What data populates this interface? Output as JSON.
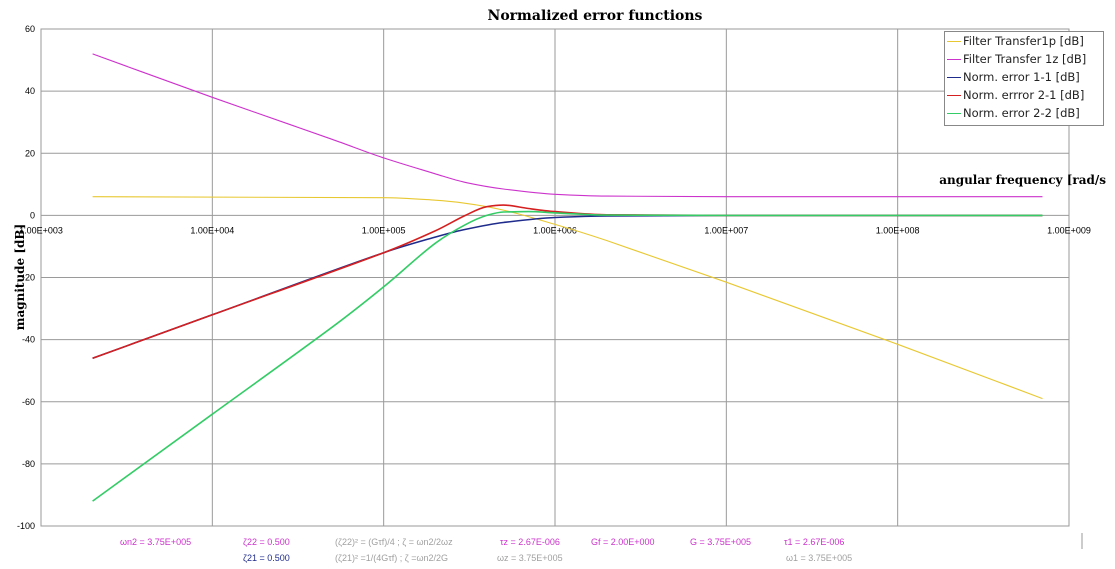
{
  "chart_data": {
    "type": "line",
    "title": "Normalized error functions",
    "xlabel": "angular frequency [rad/s",
    "ylabel": "magnitude [dB]",
    "x_scale": "log",
    "xlim": [
      1000,
      1000000000
    ],
    "ylim": [
      -100,
      60
    ],
    "x_tick_labels": [
      "1.00E+003",
      "1.00E+004",
      "1.00E+005",
      "1.00E+006",
      "1.00E+007",
      "1.00E+008",
      "1.00E+009"
    ],
    "y_tick_labels": [
      "60",
      "40",
      "20",
      "0",
      "-20",
      "-40",
      "-60",
      "-80",
      "-100"
    ],
    "grid": true,
    "legend_position": "top-right",
    "series": [
      {
        "name": "Filter Transfer1p [dB]",
        "color": "#e8c832",
        "x": [
          2000,
          100000,
          200000,
          300000,
          500000,
          1000000,
          2000000,
          10000000,
          100000000,
          700000000
        ],
        "y": [
          6,
          5.7,
          4.9,
          3.9,
          1.7,
          -2.9,
          -8.1,
          -21.5,
          -41.5,
          -59
        ]
      },
      {
        "name": "Filter Transfer 1z [dB]",
        "color": "#cc33cc",
        "x": [
          2000,
          10000,
          50000,
          100000,
          200000,
          300000,
          500000,
          1000000,
          2000000,
          10000000,
          700000000
        ],
        "y": [
          52,
          38,
          24.5,
          18.5,
          13.4,
          10.6,
          8.5,
          6.8,
          6.2,
          6.0,
          6.0
        ]
      },
      {
        "name": "Norm. error 1-1 [dB]",
        "color": "#1f2c8c",
        "x": [
          2000,
          10000,
          100000,
          200000,
          300000,
          500000,
          1000000,
          2000000,
          10000000,
          700000000
        ],
        "y": [
          -46,
          -32,
          -12,
          -7,
          -4.5,
          -2.3,
          -0.7,
          -0.2,
          0,
          0
        ]
      },
      {
        "name": "Norm. errror 2-1 [dB]",
        "color": "#d42020",
        "x": [
          2000,
          10000,
          100000,
          200000,
          300000,
          400000,
          500000,
          700000,
          1000000,
          2000000,
          10000000,
          700000000
        ],
        "y": [
          -46,
          -32,
          -12,
          -5,
          0,
          2.8,
          3.3,
          2.2,
          1.2,
          0.2,
          0,
          0
        ]
      },
      {
        "name": "Norm. error 2-2 [dB]",
        "color": "#33cc66",
        "x": [
          2000,
          10000,
          50000,
          100000,
          200000,
          300000,
          400000,
          500000,
          700000,
          1000000,
          2000000,
          10000000,
          700000000
        ],
        "y": [
          -92,
          -64,
          -36,
          -23,
          -9,
          -3,
          0,
          1.1,
          1.2,
          0.8,
          0.1,
          0,
          0
        ]
      }
    ]
  },
  "params": [
    {
      "text": "ωn2 = 3.75E+005",
      "color": "#cc33cc"
    },
    {
      "text": "ζ22 = 0.500",
      "color": "#cc33cc"
    },
    {
      "text": "(ζ22)² = (Gτf)/4 ; ζ = ωn2/2ωz",
      "color": "#a0a0a0"
    },
    {
      "text": "τz = 2.67E-006",
      "color": "#cc33cc"
    },
    {
      "text": "Gf = 2.00E+000",
      "color": "#cc33cc"
    },
    {
      "text": "G = 3.75E+005",
      "color": "#cc33cc"
    },
    {
      "text": "τ1 = 2.67E-006",
      "color": "#cc33cc"
    },
    {
      "text": "ζ21 = 0.500",
      "color": "#1f2c8c"
    },
    {
      "text": "(ζ21)² =1/(4Gτf) ; ζ =ωn2/2G",
      "color": "#a0a0a0"
    },
    {
      "text": "ωz = 3.75E+005",
      "color": "#a0a0a0"
    },
    {
      "text": "ω1 = 3.75E+005",
      "color": "#a0a0a0"
    }
  ]
}
